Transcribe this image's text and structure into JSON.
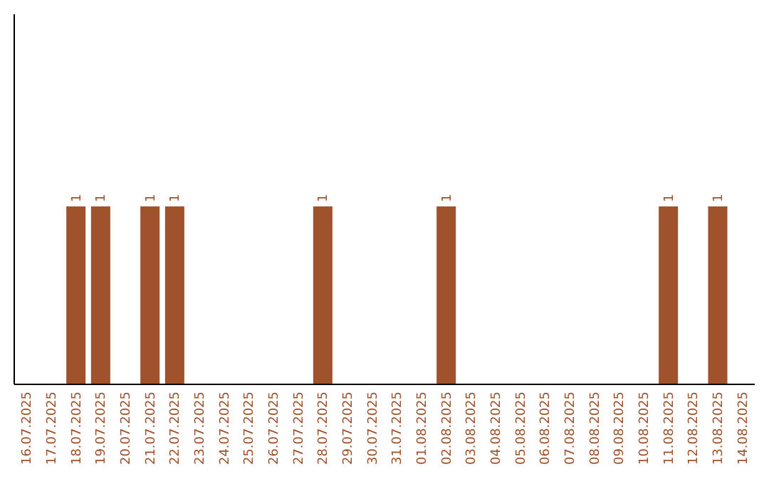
{
  "chart_data": {
    "type": "bar",
    "categories": [
      "16.07.2025",
      "17.07.2025",
      "18.07.2025",
      "19.07.2025",
      "20.07.2025",
      "21.07.2025",
      "22.07.2025",
      "23.07.2025",
      "24.07.2025",
      "25.07.2025",
      "26.07.2025",
      "27.07.2025",
      "28.07.2025",
      "29.07.2025",
      "30.07.2025",
      "31.07.2025",
      "01.08.2025",
      "02.08.2025",
      "03.08.2025",
      "04.08.2025",
      "05.08.2025",
      "06.08.2025",
      "07.08.2025",
      "08.08.2025",
      "09.08.2025",
      "10.08.2025",
      "11.08.2025",
      "12.08.2025",
      "13.08.2025",
      "14.08.2025"
    ],
    "values": [
      0,
      0,
      1,
      1,
      0,
      1,
      1,
      0,
      0,
      0,
      0,
      0,
      1,
      0,
      0,
      0,
      0,
      1,
      0,
      0,
      0,
      0,
      0,
      0,
      0,
      0,
      1,
      0,
      1,
      0
    ],
    "value_labels": [
      null,
      null,
      "1",
      "1",
      null,
      "1",
      "1",
      null,
      null,
      null,
      null,
      null,
      "1",
      null,
      null,
      null,
      null,
      "1",
      null,
      null,
      null,
      null,
      null,
      null,
      null,
      null,
      "1",
      null,
      "1",
      null
    ],
    "color": "#a0522d",
    "ylim": [
      0,
      2.08
    ],
    "tick_labels": "x"
  }
}
